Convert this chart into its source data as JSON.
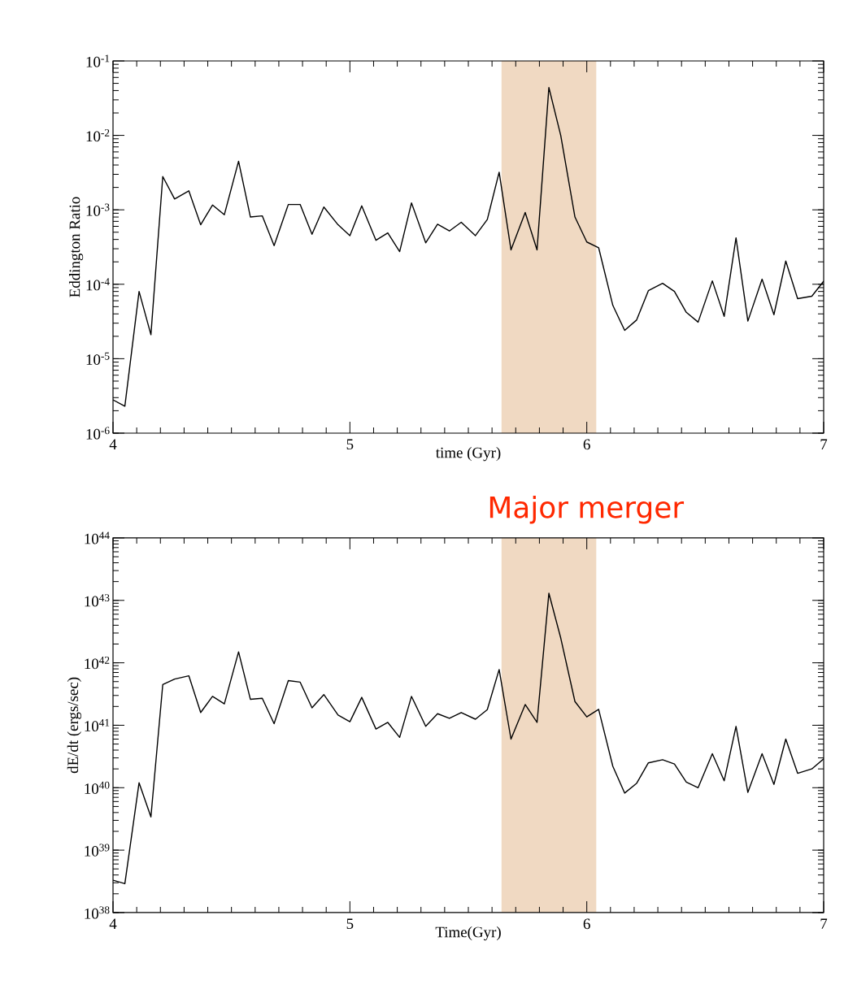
{
  "chart_data": [
    {
      "type": "line",
      "xlabel": "time (Gyr)",
      "ylabel": "Eddington Ratio",
      "log": "y",
      "grid": false,
      "x": [
        4.0,
        4.05,
        4.11,
        4.16,
        4.21,
        4.26,
        4.32,
        4.37,
        4.42,
        4.47,
        4.53,
        4.58,
        4.63,
        4.68,
        4.74,
        4.79,
        4.84,
        4.89,
        4.95,
        5.0,
        5.05,
        5.11,
        5.16,
        5.21,
        5.26,
        5.32,
        5.37,
        5.42,
        5.47,
        5.53,
        5.58,
        5.63,
        5.68,
        5.74,
        5.79,
        5.84,
        5.89,
        5.95,
        6.0,
        6.05,
        6.11,
        6.16,
        6.21,
        6.26,
        6.32,
        6.37,
        6.42,
        6.47,
        6.53,
        6.58,
        6.63,
        6.68,
        6.74,
        6.79,
        6.84,
        6.89,
        6.95,
        7.0
      ],
      "series": [
        {
          "color": "#000000",
          "values": [
            2.8e-06,
            2.3e-06,
            8e-05,
            2.1e-05,
            0.0028,
            0.0014,
            0.0018,
            0.00063,
            0.00116,
            0.00086,
            0.0045,
            0.0008,
            0.00083,
            0.00033,
            0.00118,
            0.00118,
            0.00047,
            0.00109,
            0.00063,
            0.00045,
            0.00113,
            0.00039,
            0.00049,
            0.000275,
            0.00124,
            0.00036,
            0.00064,
            0.00052,
            0.00068,
            0.00045,
            0.00074,
            0.0032,
            0.00029,
            0.00092,
            0.00029,
            0.044,
            0.01,
            0.0008,
            0.00037,
            0.00031,
            5.2e-05,
            2.4e-05,
            3.3e-05,
            8.2e-05,
            0.000103,
            8e-05,
            4.2e-05,
            3.1e-05,
            0.000111,
            3.7e-05,
            0.00042,
            3.2e-05,
            0.000117,
            3.9e-05,
            0.000205,
            6.4e-05,
            6.9e-05,
            0.00011
          ]
        }
      ],
      "xlim": [
        4,
        7
      ],
      "xticks": [
        4,
        5,
        6,
        7
      ],
      "ylim": [
        1e-06,
        0.1
      ],
      "yticks": [
        {
          "value": 1e-06,
          "label": "10$^{-6}$"
        },
        {
          "value": 1e-05,
          "label": "10$^{-5}$"
        },
        {
          "value": 0.0001,
          "label": "10$^{-4}$"
        },
        {
          "value": 0.001,
          "label": "10$^{-3}$"
        },
        {
          "value": 0.01,
          "label": "10$^{-2}$"
        },
        {
          "value": 0.1,
          "label": "10$^{-1}$"
        }
      ],
      "bands": [
        {
          "axis": "x",
          "from": 5.64,
          "to": 6.04,
          "color": "#f0d9c2"
        }
      ]
    },
    {
      "type": "line",
      "xlabel": "Time(Gyr)",
      "ylabel": "dE/dt (ergs/sec)",
      "log": "y",
      "grid": false,
      "annotations": [
        "Major merger"
      ],
      "x": [
        4.0,
        4.05,
        4.11,
        4.16,
        4.21,
        4.26,
        4.32,
        4.37,
        4.42,
        4.47,
        4.53,
        4.58,
        4.63,
        4.68,
        4.74,
        4.79,
        4.84,
        4.89,
        4.95,
        5.0,
        5.05,
        5.11,
        5.16,
        5.21,
        5.26,
        5.32,
        5.37,
        5.42,
        5.47,
        5.53,
        5.58,
        5.63,
        5.68,
        5.74,
        5.79,
        5.84,
        5.89,
        5.95,
        6.0,
        6.05,
        6.11,
        6.16,
        6.21,
        6.26,
        6.32,
        6.37,
        6.42,
        6.47,
        6.53,
        6.58,
        6.63,
        6.68,
        6.74,
        6.79,
        6.84,
        6.89,
        6.95,
        7.0
      ],
      "series": [
        {
          "color": "#000000",
          "values": [
            3.3e+38,
            2.9e+38,
            1.2e+40,
            3.4e+39,
            4.5e+41,
            5.5e+41,
            6.2e+41,
            1.6e+41,
            2.9e+41,
            2.2e+41,
            1.5e+42,
            2.6e+41,
            2.7e+41,
            1.06e+41,
            5.2e+41,
            4.9e+41,
            1.9e+41,
            3.1e+41,
            1.46e+41,
            1.14e+41,
            2.8e+41,
            8.7e+40,
            1.11e+41,
            6.4e+40,
            2.9e+41,
            9.6e+40,
            1.53e+41,
            1.29e+41,
            1.6e+41,
            1.25e+41,
            1.78e+41,
            7.8e+41,
            6e+40,
            2.15e+41,
            1.11e+41,
            1.3e+43,
            2.5e+42,
            2.4e+41,
            1.36e+41,
            1.8e+41,
            2.2e+40,
            8.2e+39,
            1.17e+40,
            2.5e+40,
            2.8e+40,
            2.4e+40,
            1.23e+40,
            1e+40,
            3.5e+40,
            1.29e+40,
            9.6e+40,
            8.4e+39,
            3.5e+40,
            1.13e+40,
            6e+40,
            1.7e+40,
            2e+40,
            2.9e+40
          ]
        }
      ],
      "xlim": [
        4,
        7
      ],
      "xticks": [
        4,
        5,
        6,
        7
      ],
      "ylim": [
        1e+38,
        1e+44
      ],
      "yticks": [
        {
          "value": 1e+38,
          "label": "10$^{38}$"
        },
        {
          "value": 1e+39,
          "label": "10$^{39}$"
        },
        {
          "value": 1e+40,
          "label": "10$^{40}$"
        },
        {
          "value": 1e+41,
          "label": "10$^{41}$"
        },
        {
          "value": 1e+42,
          "label": "10$^{42}$"
        },
        {
          "value": 1e+43,
          "label": "10$^{43}$"
        },
        {
          "value": 1e+44,
          "label": "10$^{44}$"
        }
      ],
      "bands": [
        {
          "axis": "x",
          "from": 5.64,
          "to": 6.04,
          "color": "#f0d9c2"
        }
      ]
    }
  ]
}
